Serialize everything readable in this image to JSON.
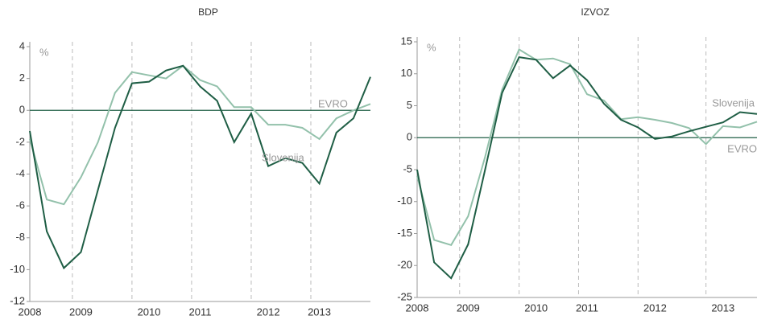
{
  "chart_data": [
    {
      "type": "line",
      "title": "BDP",
      "y_unit": "%",
      "categories": [
        "2008",
        null,
        null,
        "2009",
        null,
        null,
        null,
        "2010",
        null,
        null,
        "2011",
        null,
        null,
        null,
        "2012",
        null,
        null,
        "2013",
        null,
        null,
        null
      ],
      "ylim": [
        -12,
        4
      ],
      "yticks": [
        -12,
        -10,
        -8,
        -6,
        -4,
        -2,
        0,
        2,
        4
      ],
      "series": [
        {
          "name": "Slovenija",
          "color": "#1f5e45",
          "values": [
            -1.3,
            -7.6,
            -9.9,
            -8.9,
            -5.0,
            -1.1,
            1.7,
            1.8,
            2.5,
            2.8,
            1.5,
            0.6,
            -2.0,
            -0.2,
            -3.5,
            -3.0,
            -3.3,
            -4.6,
            -1.4,
            -0.5,
            2.1
          ]
        },
        {
          "name": "EVRO",
          "color": "#93c1ab",
          "values": [
            -1.8,
            -5.6,
            -5.9,
            -4.2,
            -2.0,
            1.1,
            2.4,
            2.2,
            2.0,
            2.8,
            1.9,
            1.5,
            0.2,
            0.2,
            -0.9,
            -0.9,
            -1.1,
            -1.8,
            -0.5,
            0.0,
            0.4
          ]
        }
      ]
    },
    {
      "type": "line",
      "title": "IZVOZ",
      "y_unit": "%",
      "categories": [
        "2008",
        null,
        null,
        "2009",
        null,
        null,
        null,
        "2010",
        null,
        null,
        "2011",
        null,
        null,
        null,
        "2012",
        null,
        null,
        null,
        "2013",
        null,
        null
      ],
      "ylim": [
        -25,
        15
      ],
      "yticks": [
        -25,
        -20,
        -15,
        -10,
        -5,
        0,
        5,
        10,
        15
      ],
      "series": [
        {
          "name": "Slovenija",
          "color": "#1f5e45",
          "values": [
            -5.0,
            -19.5,
            -22.0,
            -16.7,
            -5.0,
            7.0,
            12.6,
            12.2,
            9.3,
            11.3,
            9.0,
            5.3,
            2.8,
            1.6,
            -0.2,
            0.2,
            1.0,
            1.7,
            2.4,
            4.0,
            3.7
          ]
        },
        {
          "name": "EVRO",
          "color": "#93c1ab",
          "values": [
            -6.0,
            -16.0,
            -16.8,
            -12.3,
            -3.0,
            7.5,
            13.8,
            12.2,
            12.4,
            11.5,
            6.8,
            5.8,
            2.9,
            3.2,
            2.8,
            2.3,
            1.5,
            -1.0,
            1.8,
            1.6,
            2.5
          ]
        }
      ]
    }
  ]
}
